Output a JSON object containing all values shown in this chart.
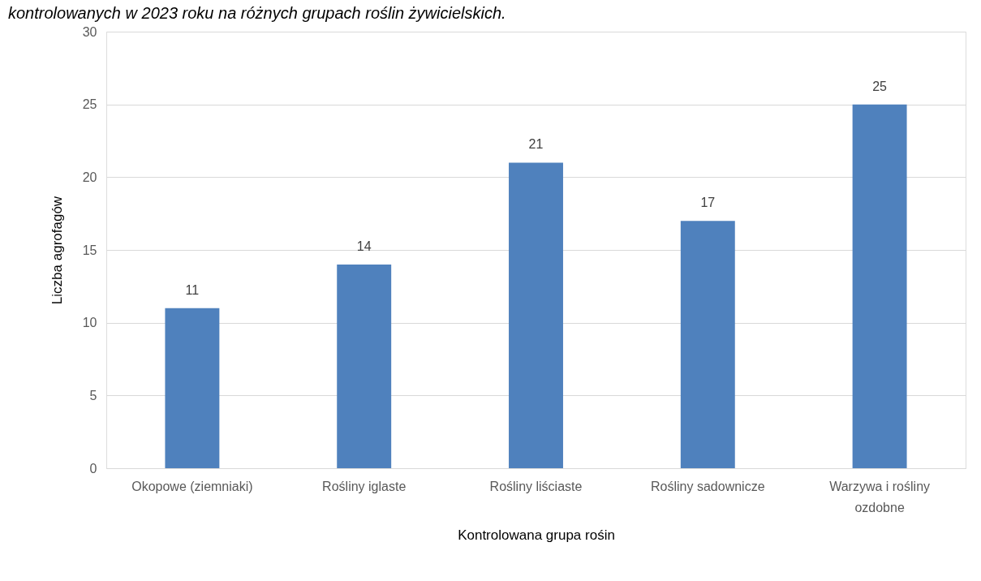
{
  "chart_data": {
    "type": "bar",
    "title": "kontrolowanych w 2023 roku na różnych grupach roślin żywicielskich.",
    "xlabel": "Kontrolowana grupa rośin",
    "ylabel": "Liczba agrofagów",
    "categories": [
      "Okopowe (ziemniaki)",
      "Rośliny iglaste",
      "Rośliny liściaste",
      "Rośliny sadownicze",
      "Warzywa i rośliny ozdobne"
    ],
    "values": [
      11,
      14,
      21,
      17,
      25
    ],
    "color": "#4f81bd",
    "ylim": [
      0,
      30
    ],
    "yticks": [
      0,
      5,
      10,
      15,
      20,
      25,
      30
    ],
    "grid": "y",
    "data_labels": true
  }
}
